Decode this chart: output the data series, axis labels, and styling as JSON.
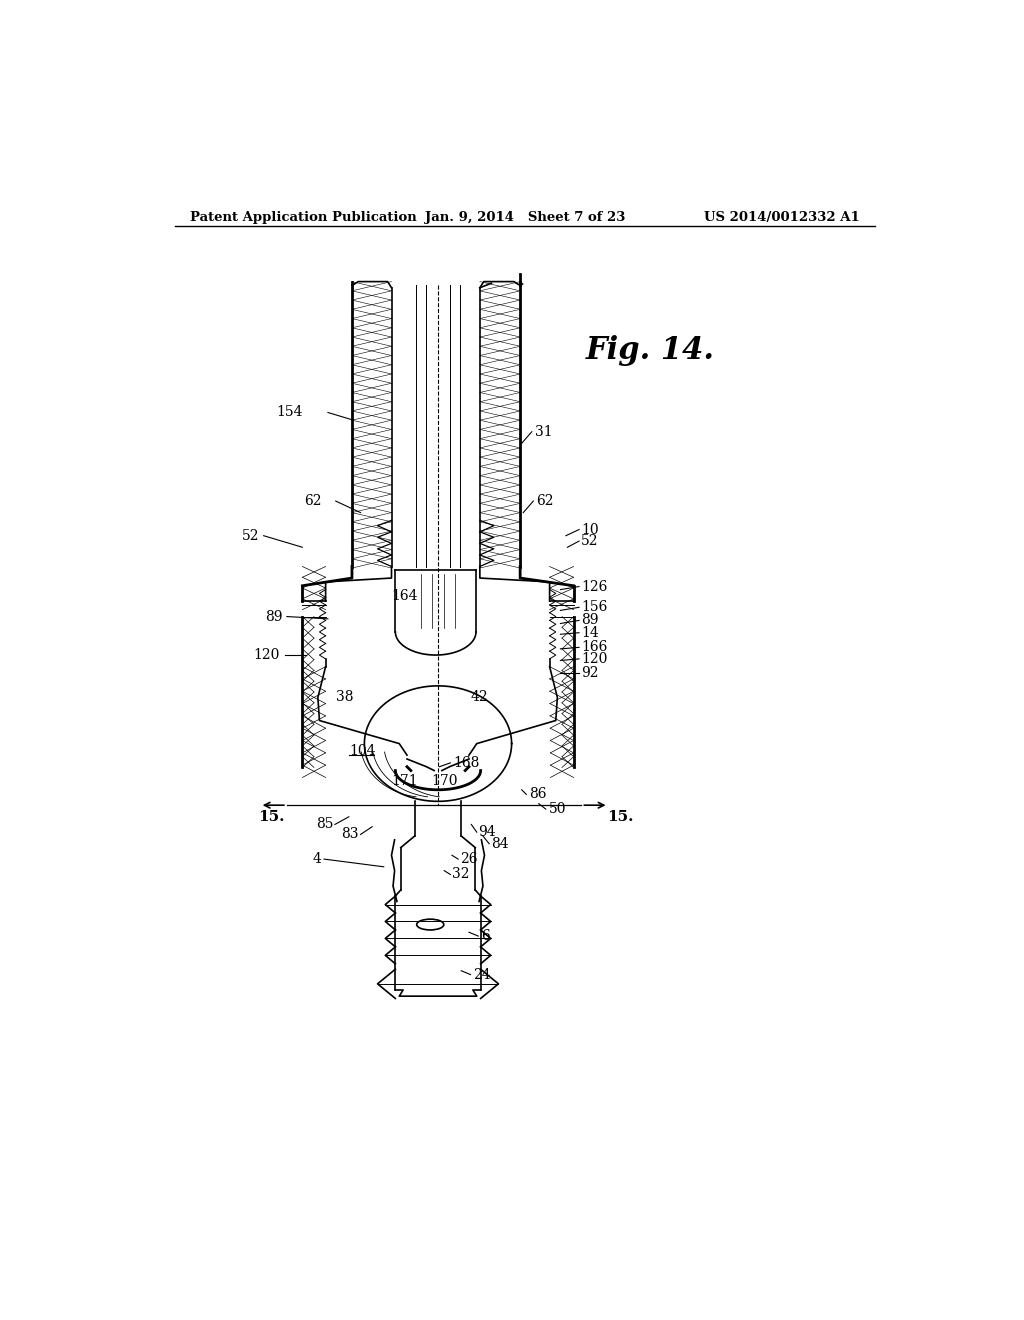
{
  "header_left": "Patent Application Publication",
  "header_center": "Jan. 9, 2014   Sheet 7 of 23",
  "header_right": "US 2014/0012332 A1",
  "fig_label": "Fig. 14.",
  "background_color": "#ffffff"
}
